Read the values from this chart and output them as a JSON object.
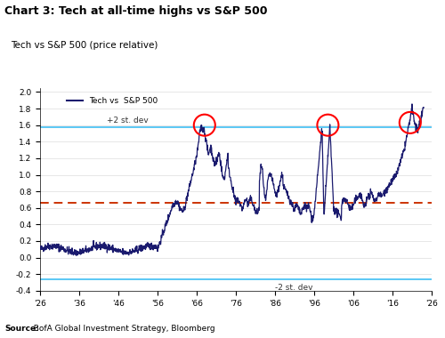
{
  "title": "Chart 3: Tech at all-time highs vs S&P 500",
  "subtitle": "Tech vs S&P 500 (price relative)",
  "source_bold": "Source:",
  "source_rest": "  BofA Global Investment Strategy, Bloomberg",
  "legend_label": "Tech vs  S&P 500",
  "ylabel_plus2": "+2 st. dev",
  "ylabel_minus2": "-2 st. dev",
  "line_plus2": 1.58,
  "line_mean": 0.66,
  "line_minus2": -0.26,
  "color_line": "#1a1a6e",
  "color_plus2": "#5bc8f5",
  "color_mean": "#cc3300",
  "color_minus2": "#5bc8f5",
  "xlim_start": 1926,
  "xlim_end": 2026,
  "ylim_min": -0.4,
  "ylim_max": 2.05,
  "yticks": [
    -0.4,
    -0.2,
    0.0,
    0.2,
    0.4,
    0.6,
    0.8,
    1.0,
    1.2,
    1.4,
    1.6,
    1.8,
    2.0
  ],
  "xticks": [
    1926,
    1936,
    1946,
    1956,
    1966,
    1976,
    1986,
    1996,
    2006,
    2016,
    2026
  ],
  "xtick_labels": [
    "'26",
    "'36",
    "'46",
    "'56",
    "'66",
    "'76",
    "'86",
    "'96",
    "'06",
    "'16",
    "'26"
  ],
  "background_color": "#ffffff",
  "plot_bg_color": "#ffffff"
}
